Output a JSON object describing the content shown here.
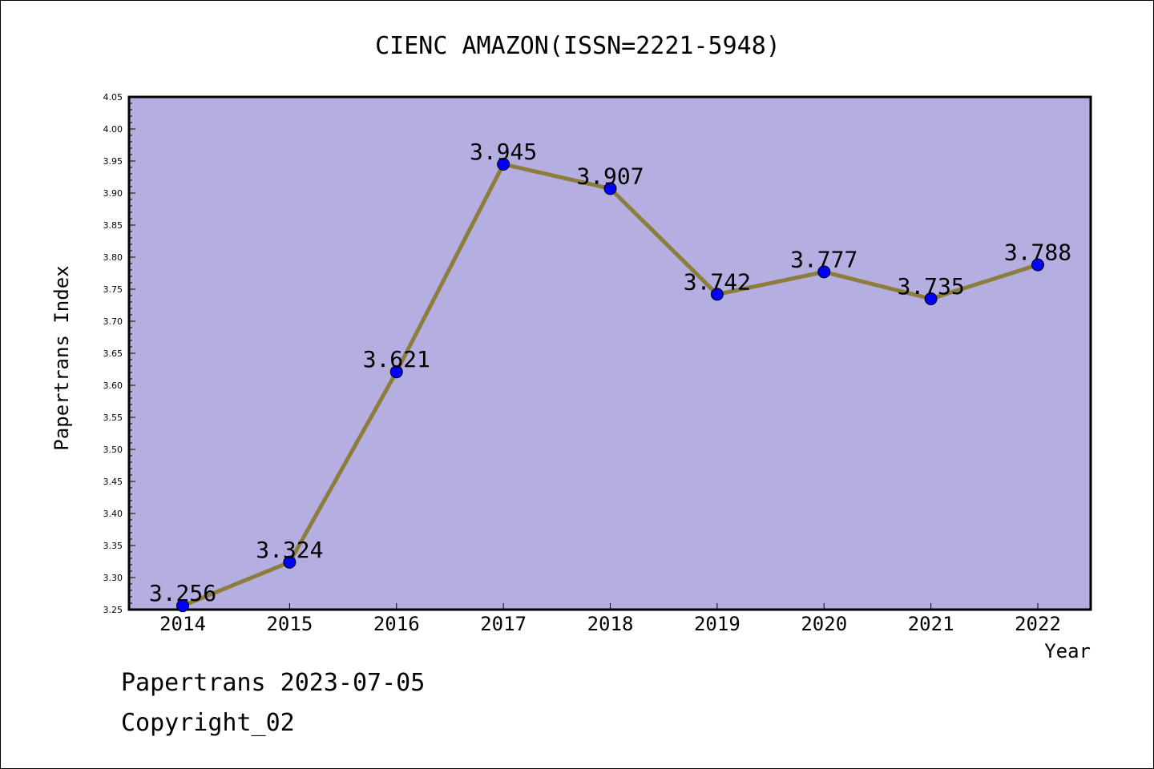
{
  "chart_data": {
    "type": "line",
    "title": "CIENC AMAZON(ISSN=2221-5948)",
    "xlabel": "Year",
    "ylabel": "Papertrans Index",
    "categories": [
      "2014",
      "2015",
      "2016",
      "2017",
      "2018",
      "2019",
      "2020",
      "2021",
      "2022"
    ],
    "values": [
      3.256,
      3.324,
      3.621,
      3.945,
      3.907,
      3.742,
      3.777,
      3.735,
      3.788
    ],
    "data_labels": [
      "3.256",
      "3.324",
      "3.621",
      "3.945",
      "3.907",
      "3.742",
      "3.777",
      "3.735",
      "3.788"
    ],
    "ylim": [
      3.25,
      4.05
    ],
    "y_ticks": [
      "3.25",
      "3.30",
      "3.35",
      "3.40",
      "3.45",
      "3.50",
      "3.55",
      "3.60",
      "3.65",
      "3.70",
      "3.75",
      "3.80",
      "3.85",
      "3.90",
      "3.95",
      "4.00",
      "4.05"
    ],
    "grid": false,
    "colors": {
      "plot_background": "#b5aee0",
      "line": "#8c7d3c",
      "marker": "#0000ff"
    }
  },
  "footer": {
    "date_line": "Papertrans 2023-07-05",
    "copyright_line": "Copyright_02"
  }
}
